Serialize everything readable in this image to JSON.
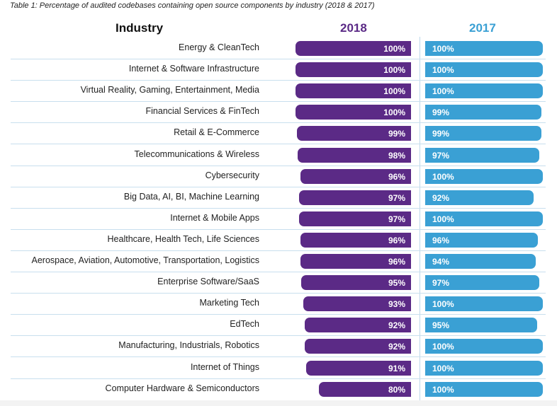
{
  "chart_data": {
    "type": "bar",
    "title": "Table 1: Percentage of audited codebases containing open source components by industry (2018 & 2017)",
    "category_header": "Industry",
    "categories": [
      "Energy & CleanTech",
      "Internet & Software Infrastructure",
      "Virtual Reality, Gaming, Entertainment, Media",
      "Financial Services & FinTech",
      "Retail & E-Commerce",
      "Telecommunications & Wireless",
      "Cybersecurity",
      "Big Data, AI, BI, Machine Learning",
      "Internet & Mobile Apps",
      "Healthcare, Health Tech, Life Sciences",
      "Aerospace, Aviation, Automotive, Transportation, Logistics",
      "Enterprise Software/SaaS",
      "Marketing Tech",
      "EdTech",
      "Manufacturing, Industrials, Robotics",
      "Internet of Things",
      "Computer Hardware & Semiconductors"
    ],
    "series": [
      {
        "name": "2018",
        "color": "#5b2a86",
        "values": [
          100,
          100,
          100,
          100,
          99,
          98,
          96,
          97,
          97,
          96,
          96,
          95,
          93,
          92,
          92,
          91,
          80
        ]
      },
      {
        "name": "2017",
        "color": "#3aa0d4",
        "values": [
          100,
          100,
          100,
          99,
          99,
          97,
          100,
          92,
          100,
          96,
          94,
          97,
          100,
          95,
          100,
          100,
          100
        ]
      }
    ],
    "unit": "%",
    "xlim": [
      0,
      100
    ]
  }
}
